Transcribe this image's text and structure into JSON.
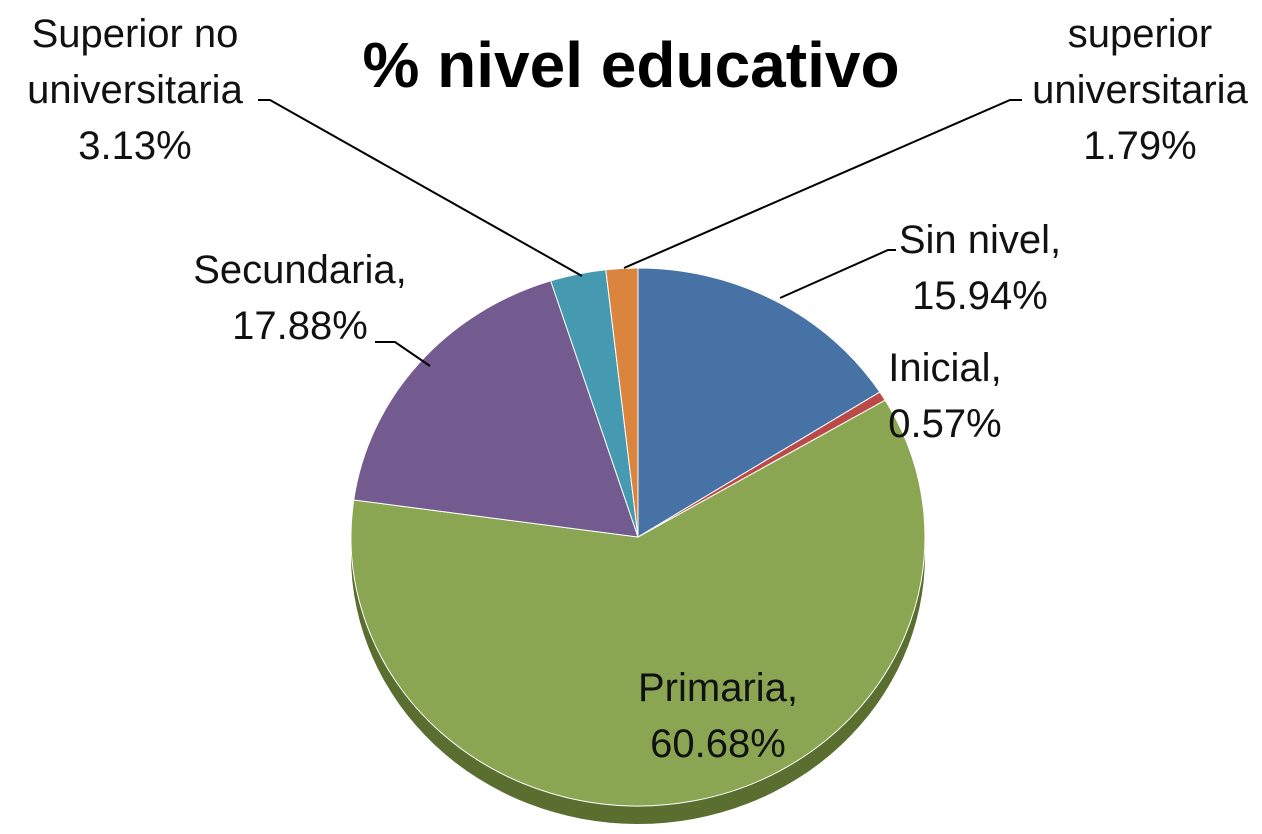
{
  "chart_data": {
    "type": "pie",
    "title": "% nivel educativo",
    "categories": [
      "Sin nivel,",
      "Inicial,",
      "Primaria,",
      "Secundaria,",
      "Superior no universitaria",
      "superior universitaria"
    ],
    "values": [
      15.94,
      0.57,
      60.68,
      17.88,
      3.13,
      1.79
    ],
    "value_labels": [
      "15.94%",
      "0.57%",
      "60.68%",
      "17.88%",
      "3.13%",
      "1.79%"
    ],
    "colors": [
      "#4672a6",
      "#b94a48",
      "#8aa653",
      "#735b8f",
      "#4599b0",
      "#db843d"
    ]
  }
}
